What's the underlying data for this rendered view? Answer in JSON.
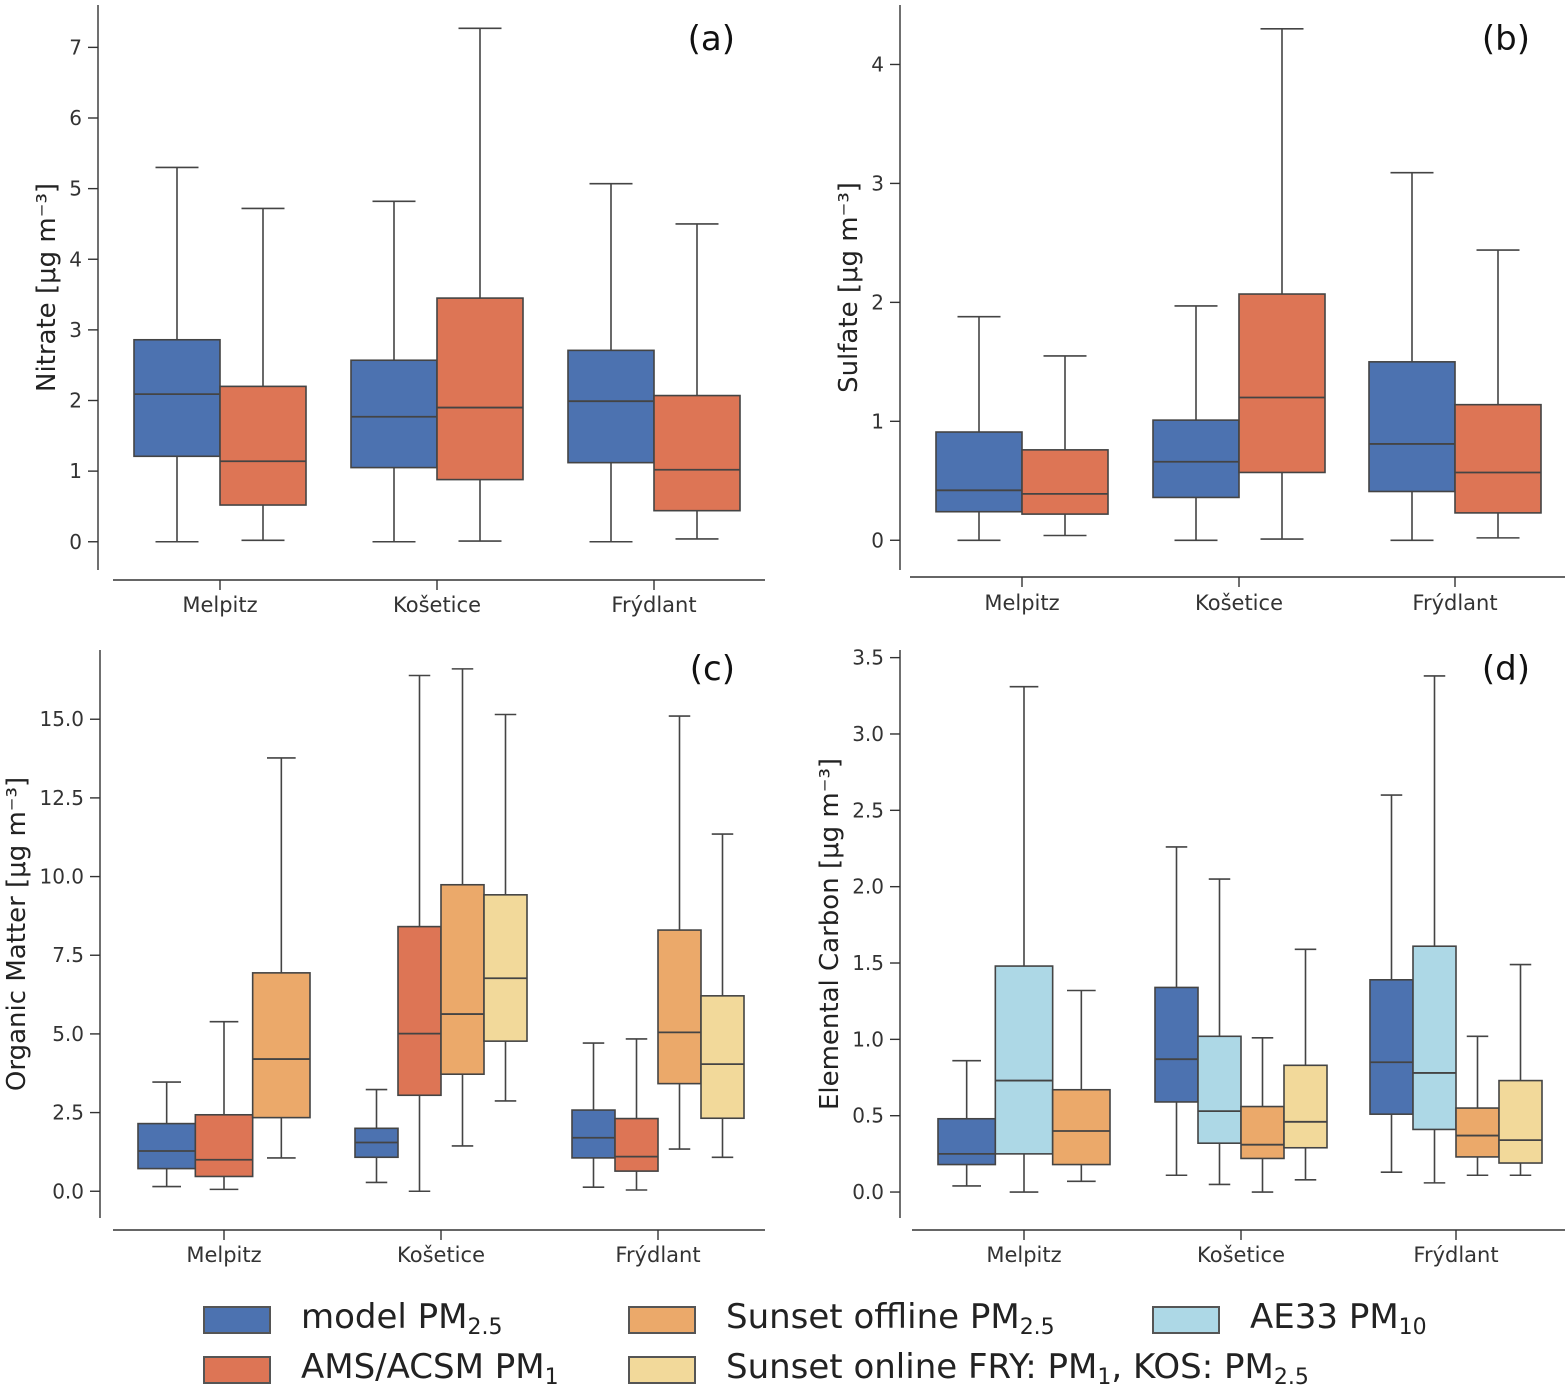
{
  "figure": {
    "panels_note": "4 panels of grouped box plots"
  },
  "chart_data": [
    {
      "type": "box",
      "panel_label": "(a)",
      "ylabel": "Nitrate [μg m⁻³]",
      "ylim": [
        -0.4,
        7.6
      ],
      "yticks": [
        0,
        1,
        2,
        3,
        4,
        5,
        6,
        7
      ],
      "ytick_labels": [
        "0",
        "1",
        "2",
        "3",
        "4",
        "5",
        "6",
        "7"
      ],
      "categories": [
        "Melpitz",
        "Košetice",
        "Frýdlant"
      ],
      "series": [
        {
          "name": "model PM2.5",
          "color": "#4c72b0",
          "boxes": [
            {
              "min": 0.0,
              "q1": 1.21,
              "median": 2.09,
              "q3": 2.86,
              "max": 5.3
            },
            {
              "min": 0.0,
              "q1": 1.05,
              "median": 1.77,
              "q3": 2.57,
              "max": 4.82
            },
            {
              "min": 0.0,
              "q1": 1.12,
              "median": 1.99,
              "q3": 2.71,
              "max": 5.07
            }
          ]
        },
        {
          "name": "AMS/ACSM PM1",
          "color": "#dd7555",
          "boxes": [
            {
              "min": 0.02,
              "q1": 0.52,
              "median": 1.14,
              "q3": 2.2,
              "max": 4.72
            },
            {
              "min": 0.01,
              "q1": 0.88,
              "median": 1.9,
              "q3": 3.45,
              "max": 7.27
            },
            {
              "min": 0.04,
              "q1": 0.44,
              "median": 1.02,
              "q3": 2.07,
              "max": 4.5
            }
          ]
        }
      ]
    },
    {
      "type": "box",
      "panel_label": "(b)",
      "ylabel": "Sulfate [μg m⁻³]",
      "ylim": [
        -0.25,
        4.5
      ],
      "yticks": [
        0,
        1,
        2,
        3,
        4
      ],
      "ytick_labels": [
        "0",
        "1",
        "2",
        "3",
        "4"
      ],
      "categories": [
        "Melpitz",
        "Košetice",
        "Frýdlant"
      ],
      "series": [
        {
          "name": "model PM2.5",
          "color": "#4c72b0",
          "boxes": [
            {
              "min": 0.0,
              "q1": 0.24,
              "median": 0.42,
              "q3": 0.91,
              "max": 1.88
            },
            {
              "min": 0.0,
              "q1": 0.36,
              "median": 0.66,
              "q3": 1.01,
              "max": 1.97
            },
            {
              "min": 0.0,
              "q1": 0.41,
              "median": 0.81,
              "q3": 1.5,
              "max": 3.09
            }
          ]
        },
        {
          "name": "AMS/ACSM PM1",
          "color": "#dd7555",
          "boxes": [
            {
              "min": 0.04,
              "q1": 0.22,
              "median": 0.39,
              "q3": 0.76,
              "max": 1.55
            },
            {
              "min": 0.01,
              "q1": 0.57,
              "median": 1.2,
              "q3": 2.07,
              "max": 4.3
            },
            {
              "min": 0.02,
              "q1": 0.23,
              "median": 0.57,
              "q3": 1.14,
              "max": 2.44
            }
          ]
        }
      ]
    },
    {
      "type": "box",
      "panel_label": "(c)",
      "ylabel": "Organic Matter [μg m⁻³]",
      "ylim": [
        -0.85,
        17.2
      ],
      "yticks": [
        0,
        2.5,
        5,
        7.5,
        10,
        12.5,
        15
      ],
      "ytick_labels": [
        "0.0",
        "2.5",
        "5.0",
        "7.5",
        "10.0",
        "12.5",
        "15.0"
      ],
      "categories": [
        "Melpitz",
        "Košetice",
        "Frýdlant"
      ],
      "series": [
        {
          "name": "model PM2.5",
          "color": "#4c72b0",
          "boxes": [
            {
              "min": 0.15,
              "q1": 0.72,
              "median": 1.28,
              "q3": 2.15,
              "max": 3.47
            },
            {
              "min": 0.28,
              "q1": 1.08,
              "median": 1.55,
              "q3": 2.0,
              "max": 3.23
            },
            {
              "min": 0.13,
              "q1": 1.06,
              "median": 1.7,
              "q3": 2.58,
              "max": 4.71
            }
          ]
        },
        {
          "name": "AMS/ACSM PM1",
          "color": "#dd7555",
          "boxes": [
            {
              "min": 0.06,
              "q1": 0.47,
              "median": 1.0,
              "q3": 2.43,
              "max": 5.39
            },
            {
              "min": 0.0,
              "q1": 3.05,
              "median": 5.01,
              "q3": 8.41,
              "max": 16.39
            },
            {
              "min": 0.04,
              "q1": 0.64,
              "median": 1.1,
              "q3": 2.31,
              "max": 4.84
            }
          ]
        },
        {
          "name": "Sunset offline PM2.5",
          "color": "#eba96a",
          "boxes": [
            {
              "min": 1.06,
              "q1": 2.34,
              "median": 4.2,
              "q3": 6.94,
              "max": 13.77
            },
            {
              "min": 1.44,
              "q1": 3.72,
              "median": 5.63,
              "q3": 9.74,
              "max": 16.6
            },
            {
              "min": 1.34,
              "q1": 3.42,
              "median": 5.05,
              "q3": 8.3,
              "max": 15.1
            }
          ]
        },
        {
          "name": "Sunset online FRY: PM1, KOS: PM2.5",
          "color": "#f2d99a",
          "boxes": null
        },
        {
          "name": "Sunset online FRY: PM1, KOS: PM2.5",
          "color": "#f2d99a",
          "boxes_by_category": {
            "Košetice": {
              "min": 2.87,
              "q1": 4.77,
              "median": 6.77,
              "q3": 9.42,
              "max": 15.15
            },
            "Frýdlant": {
              "min": 1.08,
              "q1": 2.32,
              "median": 4.04,
              "q3": 6.21,
              "max": 11.35
            }
          }
        }
      ]
    },
    {
      "type": "box",
      "panel_label": "(d)",
      "ylabel": "Elemental Carbon [μg m⁻³]",
      "ylim": [
        -0.17,
        3.55
      ],
      "yticks": [
        0,
        0.5,
        1,
        1.5,
        2,
        2.5,
        3,
        3.5
      ],
      "ytick_labels": [
        "0.0",
        "0.5",
        "1.0",
        "1.5",
        "2.0",
        "2.5",
        "3.0",
        "3.5"
      ],
      "categories": [
        "Melpitz",
        "Košetice",
        "Frýdlant"
      ],
      "series": [
        {
          "name": "model PM2.5",
          "color": "#4c72b0",
          "boxes": [
            {
              "min": 0.04,
              "q1": 0.18,
              "median": 0.25,
              "q3": 0.48,
              "max": 0.86
            },
            {
              "min": 0.11,
              "q1": 0.59,
              "median": 0.87,
              "q3": 1.34,
              "max": 2.26
            },
            {
              "min": 0.13,
              "q1": 0.51,
              "median": 0.85,
              "q3": 1.39,
              "max": 2.6
            }
          ]
        },
        {
          "name": "AE33 PM10",
          "color": "#add8e6",
          "boxes": [
            {
              "min": 0.0,
              "q1": 0.25,
              "median": 0.73,
              "q3": 1.48,
              "max": 3.31
            },
            {
              "min": 0.05,
              "q1": 0.32,
              "median": 0.53,
              "q3": 1.02,
              "max": 2.05
            },
            {
              "min": 0.06,
              "q1": 0.41,
              "median": 0.78,
              "q3": 1.61,
              "max": 3.38
            }
          ]
        },
        {
          "name": "Sunset offline PM2.5",
          "color": "#eba96a",
          "boxes": [
            {
              "min": 0.07,
              "q1": 0.18,
              "median": 0.4,
              "q3": 0.67,
              "max": 1.32
            },
            {
              "min": 0.0,
              "q1": 0.22,
              "median": 0.31,
              "q3": 0.56,
              "max": 1.01
            },
            {
              "min": 0.11,
              "q1": 0.23,
              "median": 0.37,
              "q3": 0.55,
              "max": 1.02
            }
          ]
        },
        {
          "name": "Sunset online FRY: PM1, KOS: PM2.5",
          "color": "#f2d99a",
          "boxes": [
            {
              "min": null
            },
            {
              "min": 0.08,
              "q1": 0.29,
              "median": 0.46,
              "q3": 0.83,
              "max": 1.59
            },
            {
              "min": 0.11,
              "q1": 0.19,
              "median": 0.34,
              "q3": 0.73,
              "max": 1.49
            }
          ]
        }
      ]
    }
  ],
  "legend": {
    "items": [
      {
        "text": "model PM",
        "sub": "2.5",
        "after": "",
        "color": "#4c72b0"
      },
      {
        "text": "Sunset offline PM",
        "sub": "2.5",
        "after": "",
        "color": "#eba96a"
      },
      {
        "text": "AE33 PM",
        "sub": "10",
        "after": "",
        "color": "#add8e6"
      },
      {
        "text": "AMS/ACSM PM",
        "sub": "1",
        "after": "",
        "color": "#dd7555"
      },
      {
        "text": "Sunset online FRY: PM",
        "sub": "1",
        "after": ", KOS: PM",
        "sub2": "2.5",
        "color": "#f2d99a"
      }
    ]
  }
}
